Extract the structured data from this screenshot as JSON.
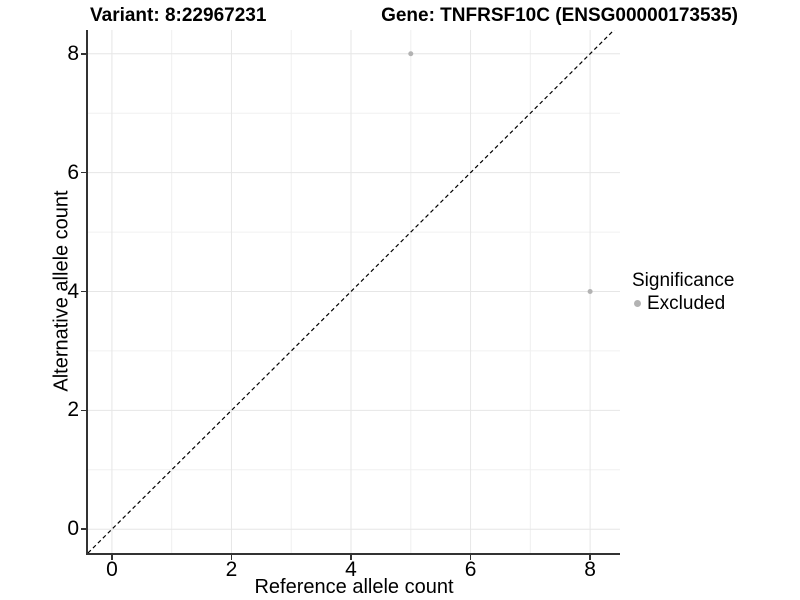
{
  "chart_data": {
    "type": "scatter",
    "title_left": "Variant: 8:22967231",
    "title_right": "Gene: TNFRSF10C (ENSG00000173535)",
    "xlabel": "Reference allele count",
    "ylabel": "Alternative allele count",
    "xlim": [
      -0.4,
      8.5
    ],
    "ylim": [
      -0.4,
      8.4
    ],
    "x_ticks": [
      0,
      2,
      4,
      6,
      8
    ],
    "y_ticks": [
      0,
      2,
      4,
      6,
      8
    ],
    "x_minor_ticks": [
      1,
      3,
      5,
      7
    ],
    "y_minor_ticks": [
      1,
      3,
      5,
      7
    ],
    "grid": {
      "show": true,
      "major_color": "#e6e6e6",
      "minor_color": "#f0f0f0"
    },
    "identity_line": {
      "style": "dashed",
      "color": "#000000",
      "from": [
        -0.4,
        -0.4
      ],
      "to": [
        8.5,
        8.5
      ]
    },
    "series": [
      {
        "name": "Excluded",
        "color": "#b3b3b3",
        "point_radius": 2.5,
        "points": [
          [
            5,
            8
          ],
          [
            8,
            4
          ]
        ]
      }
    ],
    "legend": {
      "title": "Significance",
      "position": "right",
      "entries": [
        {
          "label": "Excluded",
          "color": "#b3b3b3"
        }
      ]
    },
    "axis_color": "#333333",
    "background": "#ffffff"
  }
}
